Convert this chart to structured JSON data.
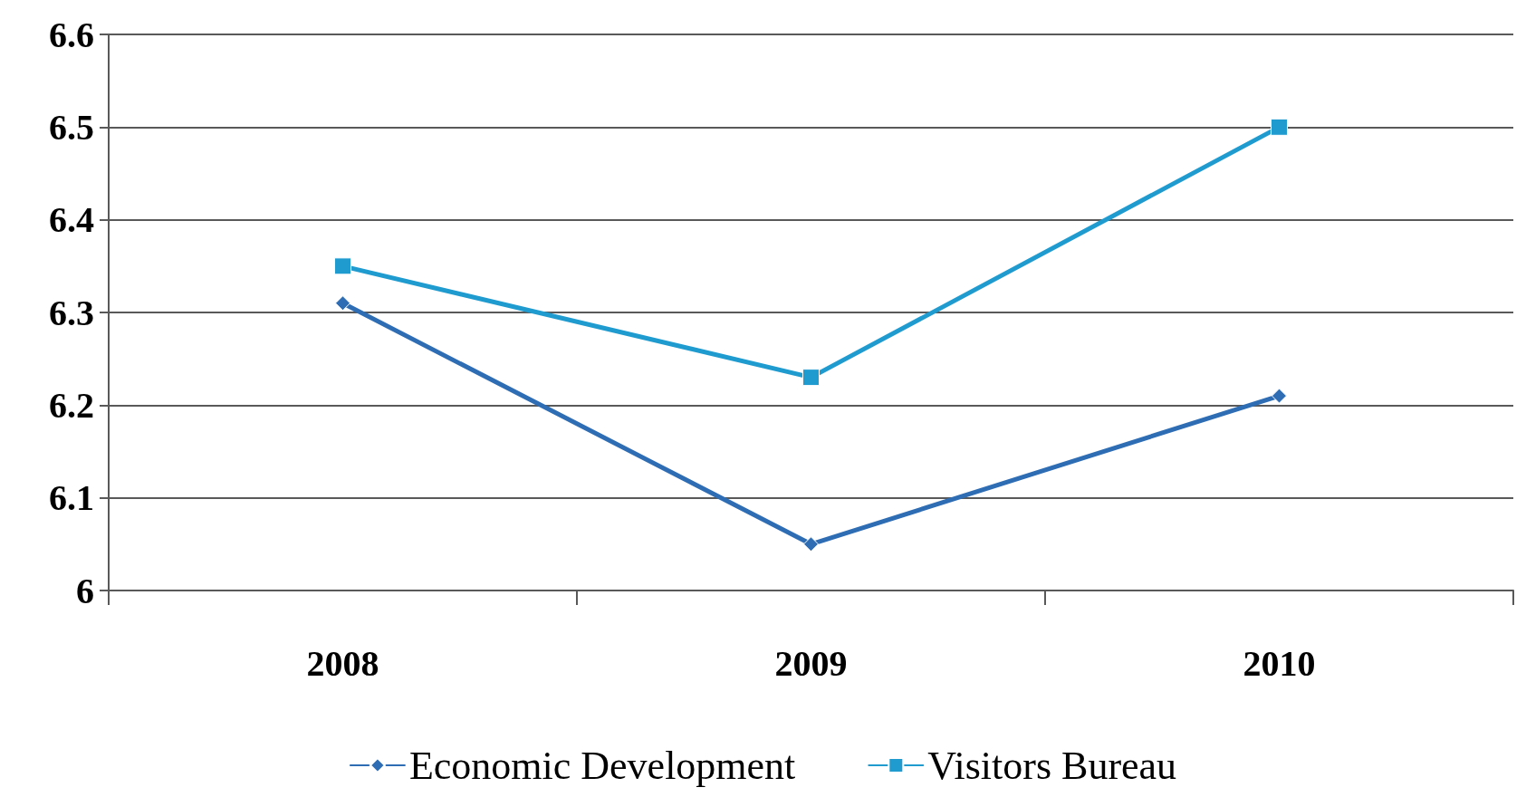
{
  "chart_data": {
    "type": "line",
    "categories": [
      "2008",
      "2009",
      "2010"
    ],
    "series": [
      {
        "name": "Economic Development",
        "color": "#2e6db4",
        "marker": "diamond",
        "values": [
          6.31,
          6.05,
          6.21
        ]
      },
      {
        "name": "Visitors Bureau",
        "color": "#1f9bd0",
        "marker": "square",
        "values": [
          6.35,
          6.23,
          6.5
        ]
      }
    ],
    "ylim": [
      6,
      6.6
    ],
    "yticks": [
      6,
      6.1,
      6.2,
      6.3,
      6.4,
      6.5,
      6.6
    ],
    "grid": "y",
    "legend": "bottom",
    "line_style": "solid"
  }
}
